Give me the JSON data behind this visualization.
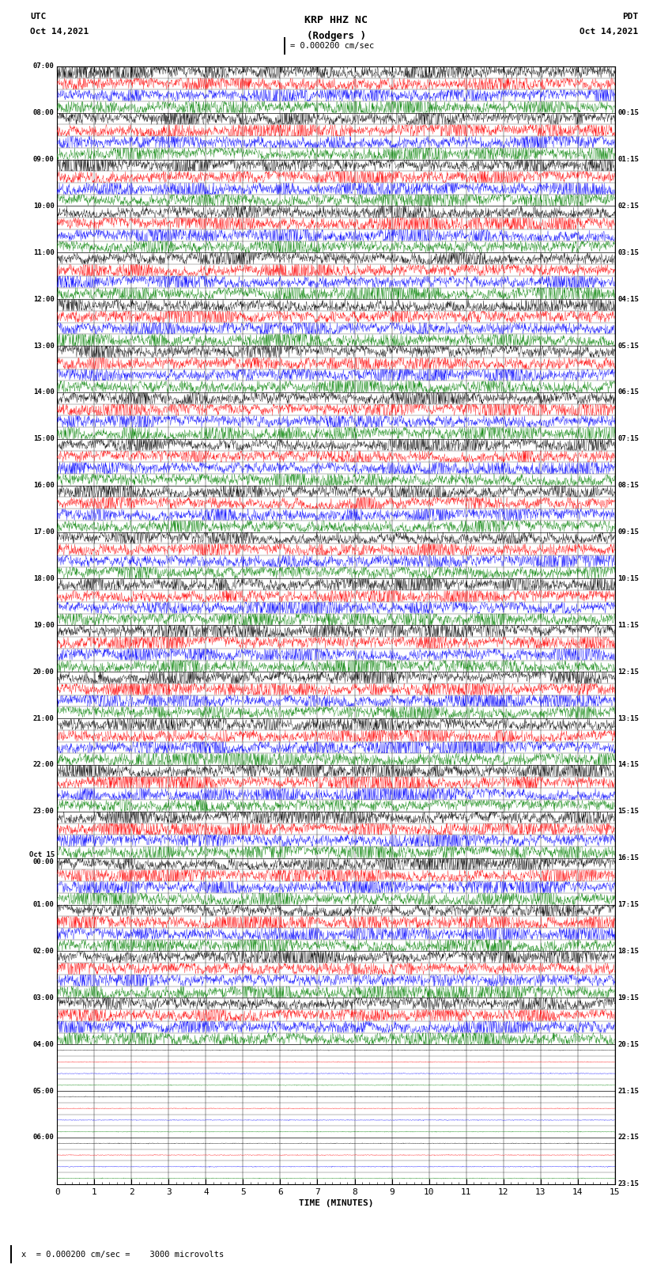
{
  "title_line1": "KRP HHZ NC",
  "title_line2": "(Rodgers )",
  "scale_label": "= 0.000200 cm/sec",
  "bottom_label": "x  = 0.000200 cm/sec =    3000 microvolts",
  "xlabel": "TIME (MINUTES)",
  "utc_label": "UTC",
  "utc_date": "Oct 14,2021",
  "pdt_label": "PDT",
  "pdt_date": "Oct 14,2021",
  "left_times": [
    "07:00",
    "08:00",
    "09:00",
    "10:00",
    "11:00",
    "12:00",
    "13:00",
    "14:00",
    "15:00",
    "16:00",
    "17:00",
    "18:00",
    "19:00",
    "20:00",
    "21:00",
    "22:00",
    "23:00",
    "Oct 15\n00:00",
    "01:00",
    "02:00",
    "03:00",
    "04:00",
    "05:00",
    "06:00"
  ],
  "right_times": [
    "00:15",
    "01:15",
    "02:15",
    "03:15",
    "04:15",
    "05:15",
    "06:15",
    "07:15",
    "08:15",
    "09:15",
    "10:15",
    "11:15",
    "12:15",
    "13:15",
    "14:15",
    "15:15",
    "16:15",
    "17:15",
    "18:15",
    "19:15",
    "20:15",
    "21:15",
    "22:15",
    "23:15"
  ],
  "n_hour_blocks": 24,
  "n_subrows": 4,
  "n_active_blocks": 21,
  "xmin": 0,
  "xmax": 15,
  "colors": [
    "black",
    "red",
    "blue",
    "green"
  ],
  "background": "white",
  "dpi": 100,
  "figwidth": 8.5,
  "figheight": 16.13,
  "n_pts": 1800,
  "signal_amp": 0.42,
  "noise_amp": 0.38
}
